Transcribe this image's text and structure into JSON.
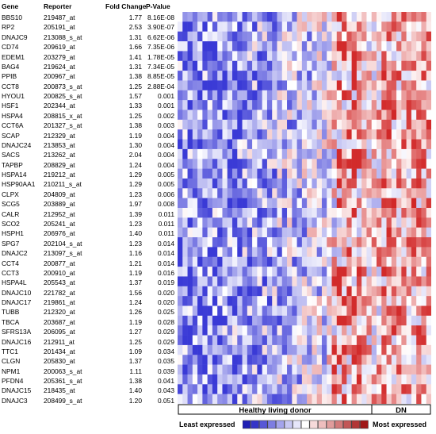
{
  "chart_data": {
    "type": "heatmap",
    "columns": [
      {
        "header": "Gene"
      },
      {
        "header": "Reporter"
      },
      {
        "header": "Fold Change"
      },
      {
        "header": "P-Value"
      }
    ],
    "rows": [
      {
        "gene": "BBS10",
        "reporter": "219487_at",
        "fold_change": "1.77",
        "p_value": "8.16E-08"
      },
      {
        "gene": "RP2",
        "reporter": "205191_at",
        "fold_change": "2.53",
        "p_value": "3.90E-07"
      },
      {
        "gene": "DNAJC9",
        "reporter": "213088_s_at",
        "fold_change": "1.31",
        "p_value": "6.62E-06"
      },
      {
        "gene": "CD74",
        "reporter": "209619_at",
        "fold_change": "1.66",
        "p_value": "7.35E-06"
      },
      {
        "gene": "EDEM1",
        "reporter": "203279_at",
        "fold_change": "1.41",
        "p_value": "1.78E-05"
      },
      {
        "gene": "BAG4",
        "reporter": "219624_at",
        "fold_change": "1.31",
        "p_value": "7.34E-05"
      },
      {
        "gene": "PPIB",
        "reporter": "200967_at",
        "fold_change": "1.38",
        "p_value": "8.85E-05"
      },
      {
        "gene": "CCT8",
        "reporter": "200873_s_at",
        "fold_change": "1.25",
        "p_value": "2.88E-04"
      },
      {
        "gene": "HYOU1",
        "reporter": "200825_s_at",
        "fold_change": "1.57",
        "p_value": "0.001"
      },
      {
        "gene": "HSF1",
        "reporter": "202344_at",
        "fold_change": "1.33",
        "p_value": "0.001"
      },
      {
        "gene": "HSPA4",
        "reporter": "208815_x_at",
        "fold_change": "1.25",
        "p_value": "0.002"
      },
      {
        "gene": "CCT6A",
        "reporter": "201327_s_at",
        "fold_change": "1.38",
        "p_value": "0.003"
      },
      {
        "gene": "SCAP",
        "reporter": "212329_at",
        "fold_change": "1.19",
        "p_value": "0.004"
      },
      {
        "gene": "DNAJC24",
        "reporter": "213853_at",
        "fold_change": "1.30",
        "p_value": "0.004"
      },
      {
        "gene": "SACS",
        "reporter": "213262_at",
        "fold_change": "2.04",
        "p_value": "0.004"
      },
      {
        "gene": "TAPBP",
        "reporter": "208829_at",
        "fold_change": "1.24",
        "p_value": "0.004"
      },
      {
        "gene": "HSPA14",
        "reporter": "219212_at",
        "fold_change": "1.29",
        "p_value": "0.005"
      },
      {
        "gene": "HSP90AA1",
        "reporter": "210211_s_at",
        "fold_change": "1.29",
        "p_value": "0.005"
      },
      {
        "gene": "CLPX",
        "reporter": "204809_at",
        "fold_change": "1.23",
        "p_value": "0.006"
      },
      {
        "gene": "SCG5",
        "reporter": "203889_at",
        "fold_change": "1.97",
        "p_value": "0.008"
      },
      {
        "gene": "CALR",
        "reporter": "212952_at",
        "fold_change": "1.39",
        "p_value": "0.011"
      },
      {
        "gene": "SCO2",
        "reporter": "205241_at",
        "fold_change": "1.23",
        "p_value": "0.011"
      },
      {
        "gene": "HSPH1",
        "reporter": "206976_at",
        "fold_change": "1.40",
        "p_value": "0.011"
      },
      {
        "gene": "SPG7",
        "reporter": "202104_s_at",
        "fold_change": "1.23",
        "p_value": "0.014"
      },
      {
        "gene": "DNAJC2",
        "reporter": "213097_s_at",
        "fold_change": "1.16",
        "p_value": "0.014"
      },
      {
        "gene": "CCT4",
        "reporter": "200877_at",
        "fold_change": "1.21",
        "p_value": "0.014"
      },
      {
        "gene": "CCT3",
        "reporter": "200910_at",
        "fold_change": "1.19",
        "p_value": "0.016"
      },
      {
        "gene": "HSPA4L",
        "reporter": "205543_at",
        "fold_change": "1.37",
        "p_value": "0.019"
      },
      {
        "gene": "DNAJC10",
        "reporter": "221782_at",
        "fold_change": "1.56",
        "p_value": "0.020"
      },
      {
        "gene": "DNAJC17",
        "reporter": "219861_at",
        "fold_change": "1.24",
        "p_value": "0.020"
      },
      {
        "gene": "TUBB",
        "reporter": "212320_at",
        "fold_change": "1.26",
        "p_value": "0.025"
      },
      {
        "gene": "TBCA",
        "reporter": "203687_at",
        "fold_change": "1.19",
        "p_value": "0.028"
      },
      {
        "gene": "SFRS13A",
        "reporter": "206095_at",
        "fold_change": "1.27",
        "p_value": "0.029"
      },
      {
        "gene": "DNAJC16",
        "reporter": "212911_at",
        "fold_change": "1.25",
        "p_value": "0.029"
      },
      {
        "gene": "TTC1",
        "reporter": "201434_at",
        "fold_change": "1.09",
        "p_value": "0.034"
      },
      {
        "gene": "CLGN",
        "reporter": "205830_at",
        "fold_change": "1.37",
        "p_value": "0.035"
      },
      {
        "gene": "NPM1",
        "reporter": "200063_s_at",
        "fold_change": "1.11",
        "p_value": "0.039"
      },
      {
        "gene": "PFDN4",
        "reporter": "205361_s_at",
        "fold_change": "1.38",
        "p_value": "0.041"
      },
      {
        "gene": "DNAJC15",
        "reporter": "218435_at",
        "fold_change": "1.40",
        "p_value": "0.043"
      },
      {
        "gene": "DNAJC3",
        "reporter": "208499_s_at",
        "fold_change": "1.20",
        "p_value": "0.051"
      }
    ],
    "samples": {
      "healthy_count": 41,
      "dn_count": 10
    },
    "groups": [
      {
        "label": "Healthy living donor",
        "size": 41
      },
      {
        "label": "DN",
        "size": 10
      }
    ],
    "legend": {
      "low_label": "Least expressed",
      "high_label": "Most expressed",
      "swatches": [
        "#1f1fb4",
        "#3535c8",
        "#5757d6",
        "#7d7de2",
        "#a4a4ec",
        "#c8c8f2",
        "#e6e6fa",
        "#ffffff",
        "#f6dada",
        "#eebebe",
        "#e09c9c",
        "#d27a7a",
        "#c25656",
        "#b23636",
        "#a01818"
      ],
      "color_low": "#3a3ad6",
      "color_mid": "#ffffff",
      "color_high": "#d02020"
    }
  }
}
